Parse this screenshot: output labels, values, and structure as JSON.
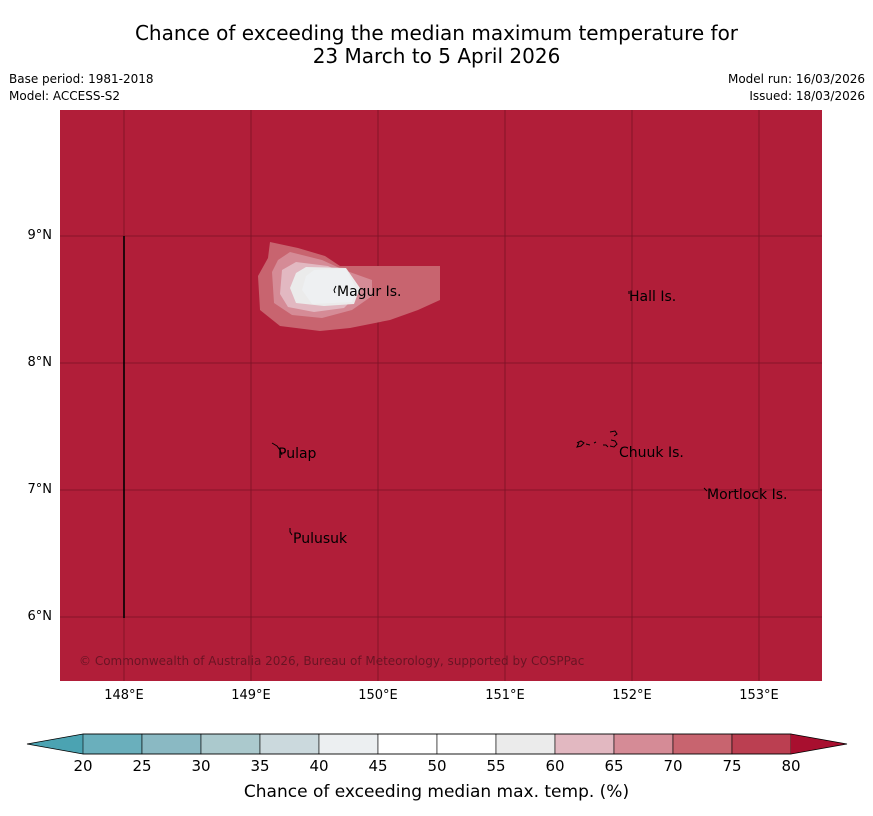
{
  "title": {
    "line1": "Chance of exceeding the median maximum temperature for",
    "line2": "23 March to 5 April 2026"
  },
  "meta": {
    "base_period": "Base period: 1981-2018",
    "model": "Model: ACCESS-S2",
    "model_run": "Model run: 16/03/2026",
    "issued": "Issued: 18/03/2026"
  },
  "map": {
    "background_color": "#b11e39",
    "copyright": "© Commonwealth of Australia 2026, Bureau of Meteorology, supported by COSPPac",
    "places": {
      "magur": "Magur Is.",
      "hall": "Hall Is.",
      "pulap": "Pulap",
      "chuuk": "Chuuk Is.",
      "mortlock": "Mortlock Is.",
      "pulusuk": "Pulusuk"
    },
    "lat_ticks": [
      "9°N",
      "8°N",
      "7°N",
      "6°N"
    ],
    "lon_ticks": [
      "148°E",
      "149°E",
      "150°E",
      "151°E",
      "152°E",
      "153°E"
    ]
  },
  "colorbar": {
    "title": "Chance of exceeding median max. temp. (%)",
    "ticks": [
      "20",
      "25",
      "30",
      "35",
      "40",
      "45",
      "50",
      "55",
      "60",
      "65",
      "70",
      "75",
      "80"
    ],
    "colors": [
      "#4ba3b2",
      "#6aafbc",
      "#8ab9c3",
      "#abc9cd",
      "#cbd9dd",
      "#eceff1",
      "#ffffff",
      "#ffffff",
      "#ebebeb",
      "#e2b8c1",
      "#d58b96",
      "#c8646f",
      "#bb3f51",
      "#a80f2f"
    ]
  }
}
